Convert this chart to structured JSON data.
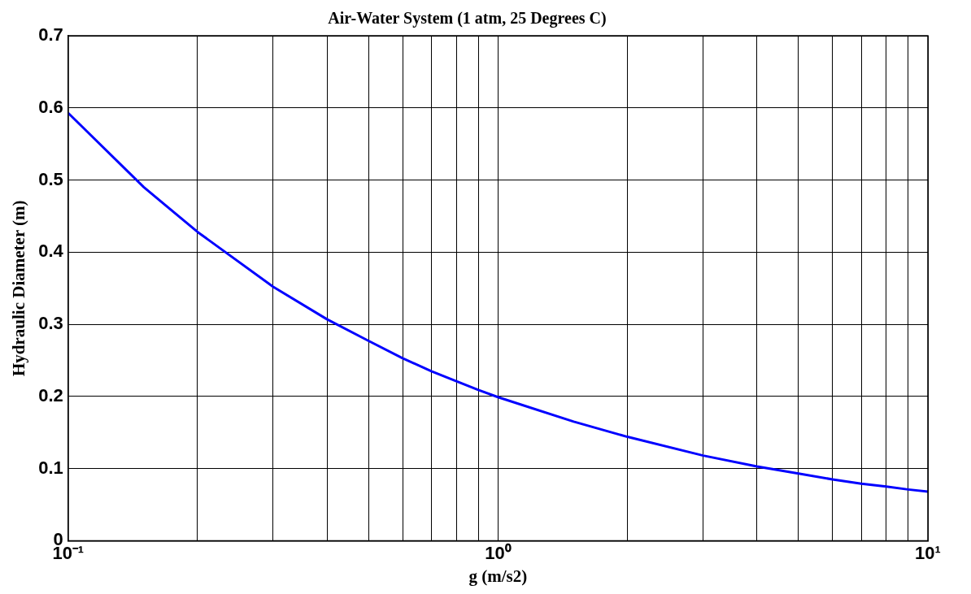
{
  "chart_data": {
    "type": "line",
    "title": "Air-Water System (1 atm, 25 Degrees C)",
    "xlabel": "g (m/s2)",
    "ylabel": "Hydraulic Diameter (m)",
    "x": [
      0.1,
      0.15,
      0.2,
      0.3,
      0.4,
      0.5,
      0.6,
      0.7,
      0.8,
      0.9,
      1,
      1.5,
      2,
      3,
      4,
      5,
      6,
      7,
      8,
      9,
      10
    ],
    "series": [
      {
        "color": "#0000ff",
        "values": [
          0.593,
          0.49,
          0.428,
          0.352,
          0.307,
          0.277,
          0.253,
          0.235,
          0.221,
          0.209,
          0.199,
          0.165,
          0.144,
          0.118,
          0.103,
          0.093,
          0.085,
          0.079,
          0.075,
          0.071,
          0.068
        ]
      }
    ],
    "log": "x",
    "xlim": [
      0.1,
      10
    ],
    "ylim": [
      0,
      0.7
    ],
    "xticks": [
      {
        "value": 0.1,
        "label": "10⁻¹"
      },
      {
        "value": 0.2,
        "label": null
      },
      {
        "value": 0.3,
        "label": null
      },
      {
        "value": 0.4,
        "label": null
      },
      {
        "value": 0.5,
        "label": null
      },
      {
        "value": 0.6,
        "label": null
      },
      {
        "value": 0.7,
        "label": null
      },
      {
        "value": 0.8,
        "label": null
      },
      {
        "value": 0.9,
        "label": null
      },
      {
        "value": 1,
        "label": "10⁰"
      },
      {
        "value": 2,
        "label": null
      },
      {
        "value": 3,
        "label": null
      },
      {
        "value": 4,
        "label": null
      },
      {
        "value": 5,
        "label": null
      },
      {
        "value": 6,
        "label": null
      },
      {
        "value": 7,
        "label": null
      },
      {
        "value": 8,
        "label": null
      },
      {
        "value": 9,
        "label": null
      },
      {
        "value": 10,
        "label": "10¹"
      }
    ],
    "yticks": [
      0,
      0.1,
      0.2,
      0.3,
      0.4,
      0.5,
      0.6,
      0.7
    ],
    "grid": true,
    "legend": false,
    "marker": "none",
    "line_style": "solid"
  }
}
